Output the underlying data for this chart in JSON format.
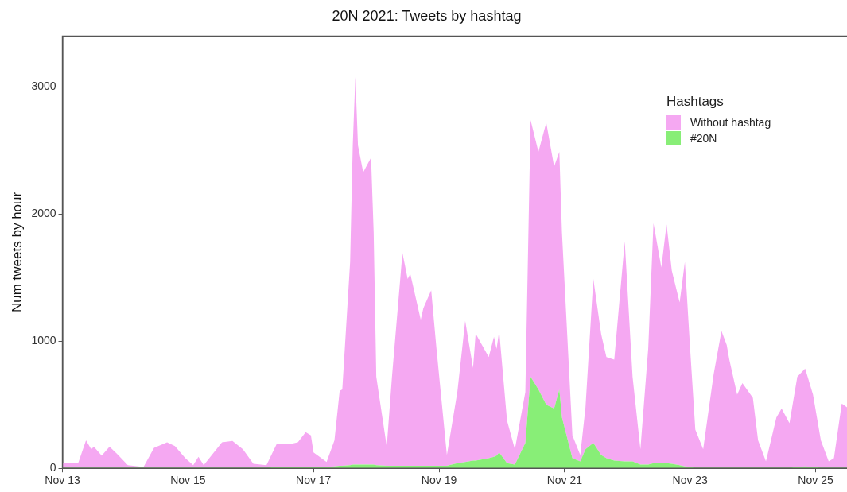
{
  "chart_data": {
    "type": "area",
    "title": "20N 2021: Tweets by hashtag",
    "ylabel": "Num tweets by hour",
    "legend_title": "Hashtags",
    "legend": "top right",
    "stacked": true,
    "x": [
      "2021-11-13T00:00",
      "2021-11-13T06:00",
      "2021-11-13T09:00",
      "2021-11-13T11:00",
      "2021-11-13T12:00",
      "2021-11-13T15:00",
      "2021-11-13T18:00",
      "2021-11-13T21:00",
      "2021-11-14T01:00",
      "2021-11-14T07:00",
      "2021-11-14T11:00",
      "2021-11-14T16:00",
      "2021-11-14T19:00",
      "2021-11-14T23:00",
      "2021-11-15T02:00",
      "2021-11-15T04:00",
      "2021-11-15T06:00",
      "2021-11-15T13:00",
      "2021-11-15T17:00",
      "2021-11-15T21:00",
      "2021-11-16T01:00",
      "2021-11-16T06:00",
      "2021-11-16T10:00",
      "2021-11-16T16:00",
      "2021-11-16T18:00",
      "2021-11-16T21:00",
      "2021-11-16T23:00",
      "2021-11-17T00:00",
      "2021-11-17T05:00",
      "2021-11-17T08:00",
      "2021-11-17T10:00",
      "2021-11-17T11:00",
      "2021-11-17T14:00",
      "2021-11-17T15:00",
      "2021-11-17T16:00",
      "2021-11-17T17:00",
      "2021-11-17T19:00",
      "2021-11-17T22:00",
      "2021-11-17T23:00",
      "2021-11-18T00:00",
      "2021-11-18T04:00",
      "2021-11-18T06:00",
      "2021-11-18T10:00",
      "2021-11-18T12:00",
      "2021-11-18T13:00",
      "2021-11-18T17:00",
      "2021-11-18T18:00",
      "2021-11-18T21:00",
      "2021-11-18T23:00",
      "2021-11-19T03:00",
      "2021-11-19T07:00",
      "2021-11-19T10:00",
      "2021-11-19T13:00",
      "2021-11-19T14:00",
      "2021-11-19T19:00",
      "2021-11-19T21:00",
      "2021-11-19T22:00",
      "2021-11-19T23:00",
      "2021-11-20T02:00",
      "2021-11-20T05:00",
      "2021-11-20T09:00",
      "2021-11-20T11:00",
      "2021-11-20T14:00",
      "2021-11-20T17:00",
      "2021-11-20T20:00",
      "2021-11-20T22:00",
      "2021-11-20T23:00",
      "2021-11-21T03:00",
      "2021-11-21T06:00",
      "2021-11-21T08:00",
      "2021-11-21T11:00",
      "2021-11-21T14:00",
      "2021-11-21T16:00",
      "2021-11-21T19:00",
      "2021-11-21T23:00",
      "2021-11-22T02:00",
      "2021-11-22T05:00",
      "2021-11-22T08:00",
      "2021-11-22T10:00",
      "2021-11-22T13:00",
      "2021-11-22T15:00",
      "2021-11-22T17:00",
      "2021-11-22T20:00",
      "2021-11-22T22:00",
      "2021-11-23T00:00",
      "2021-11-23T02:00",
      "2021-11-23T05:00",
      "2021-11-23T09:00",
      "2021-11-23T12:00",
      "2021-11-23T14:00",
      "2021-11-23T15:00",
      "2021-11-23T18:00",
      "2021-11-23T20:00",
      "2021-11-24T00:00",
      "2021-11-24T02:00",
      "2021-11-24T05:00",
      "2021-11-24T09:00",
      "2021-11-24T11:00",
      "2021-11-24T14:00",
      "2021-11-24T17:00",
      "2021-11-24T20:00",
      "2021-11-24T23:00",
      "2021-11-25T02:00",
      "2021-11-25T05:00",
      "2021-11-25T07:00",
      "2021-11-25T10:00",
      "2021-11-25T12:00"
    ],
    "series": [
      {
        "name": "#20N",
        "color": "#88ee77",
        "values": [
          5,
          5,
          5,
          5,
          5,
          5,
          5,
          5,
          5,
          5,
          5,
          5,
          5,
          5,
          5,
          5,
          5,
          5,
          5,
          5,
          5,
          5,
          10,
          10,
          10,
          10,
          10,
          10,
          10,
          15,
          20,
          20,
          25,
          30,
          30,
          30,
          30,
          30,
          30,
          25,
          20,
          20,
          20,
          20,
          20,
          20,
          20,
          20,
          20,
          20,
          40,
          50,
          60,
          60,
          80,
          90,
          100,
          125,
          40,
          30,
          200,
          720,
          620,
          500,
          470,
          620,
          400,
          80,
          55,
          150,
          200,
          105,
          80,
          60,
          55,
          55,
          30,
          30,
          40,
          45,
          40,
          35,
          25,
          15,
          10,
          5,
          5,
          5,
          5,
          5,
          5,
          5,
          5,
          5,
          5,
          5,
          5,
          5,
          5,
          10,
          15,
          10,
          5,
          5,
          5,
          5,
          5
        ]
      },
      {
        "name": "Without hashtag",
        "color": "#f5a8f2",
        "values": [
          35,
          35,
          215,
          145,
          165,
          95,
          165,
          105,
          20,
          5,
          155,
          200,
          170,
          75,
          20,
          85,
          20,
          200,
          210,
          145,
          30,
          20,
          185,
          185,
          195,
          275,
          250,
          115,
          40,
          205,
          590,
          600,
          1600,
          2510,
          3050,
          2510,
          2300,
          2415,
          1825,
          695,
          150,
          700,
          1675,
          1470,
          1510,
          1150,
          1240,
          1380,
          925,
          85,
          560,
          1110,
          730,
          1000,
          795,
          945,
          840,
          955,
          335,
          120,
          400,
          2020,
          1870,
          2220,
          1905,
          1870,
          1455,
          180,
          50,
          330,
          1290,
          950,
          795,
          795,
          1730,
          665,
          120,
          915,
          1890,
          1535,
          1880,
          1520,
          1280,
          1610,
          935,
          300,
          145,
          735,
          1075,
          965,
          850,
          575,
          665,
          550,
          215,
          50,
          395,
          465,
          350,
          710,
          770,
          570,
          215,
          50,
          75,
          505,
          475
        ]
      }
    ],
    "xlim": [
      "2021-11-13T00:00",
      "2021-11-25T12:00"
    ],
    "xticks": [
      {
        "value": "2021-11-13T00:00",
        "label": "Nov 13"
      },
      {
        "value": "2021-11-15T00:00",
        "label": "Nov 15"
      },
      {
        "value": "2021-11-17T00:00",
        "label": "Nov 17"
      },
      {
        "value": "2021-11-19T00:00",
        "label": "Nov 19"
      },
      {
        "value": "2021-11-21T00:00",
        "label": "Nov 21"
      },
      {
        "value": "2021-11-23T00:00",
        "label": "Nov 23"
      },
      {
        "value": "2021-11-25T00:00",
        "label": "Nov 25"
      }
    ],
    "ylim": [
      0,
      3400
    ],
    "yticks": [
      0,
      1000,
      2000,
      3000
    ]
  }
}
